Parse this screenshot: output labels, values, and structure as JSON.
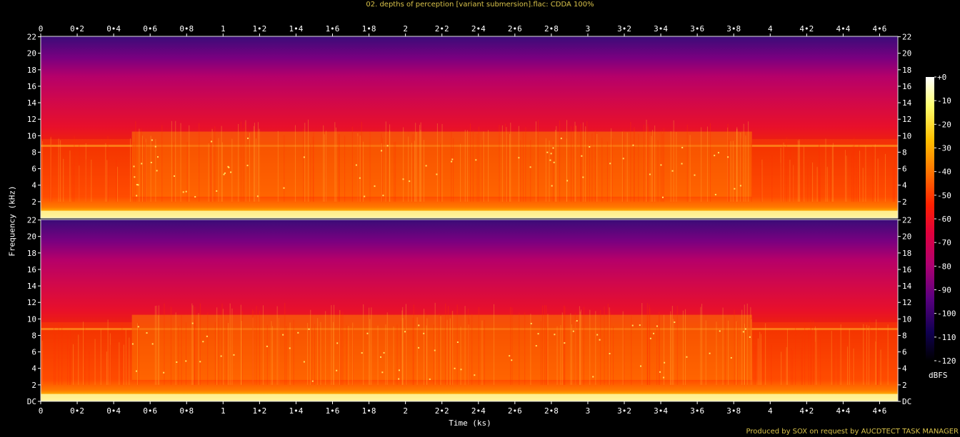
{
  "header": {
    "title": "02. depths of perception [variant submersion].flac: CDDA 100%"
  },
  "footer": {
    "credit": "Produced by SOX on request by AUCDTECT TASK MANAGER"
  },
  "colors": {
    "title_text": "#d9c24a",
    "background": "#000000"
  },
  "chart_data": {
    "type": "heatmap",
    "title": "02. depths of perception [variant submersion].flac: CDDA 100%",
    "xlabel": "Time (ks)",
    "ylabel": "Frequency (kHz)",
    "colorbar_label": "dBFS",
    "xlim": [
      0,
      4.7
    ],
    "ylim_khz": [
      0,
      22.05
    ],
    "x_ticks": [
      0,
      0.2,
      0.4,
      0.6,
      0.8,
      1,
      1.2,
      1.4,
      1.6,
      1.8,
      2,
      2.2,
      2.4,
      2.6,
      2.8,
      3,
      3.2,
      3.4,
      3.6,
      3.8,
      4,
      4.2,
      4.4,
      4.6
    ],
    "x_tick_labels": [
      "0",
      "0•2",
      "0•4",
      "0•6",
      "0•8",
      "1",
      "1•2",
      "1•4",
      "1•6",
      "1•8",
      "2",
      "2•2",
      "2•4",
      "2•6",
      "2•8",
      "3",
      "3•2",
      "3•4",
      "3•6",
      "3•8",
      "4",
      "4•2",
      "4•4",
      "4•6"
    ],
    "y_ticks": [
      0,
      2,
      4,
      6,
      8,
      10,
      12,
      14,
      16,
      18,
      20,
      22
    ],
    "y_tick_labels_top": [
      "2",
      "4",
      "6",
      "8",
      "10",
      "12",
      "14",
      "16",
      "18",
      "20",
      "22"
    ],
    "y_tick_labels_bottom": [
      "DC",
      "2",
      "4",
      "6",
      "8",
      "10",
      "12",
      "14",
      "16",
      "18",
      "20",
      "22"
    ],
    "colorbar_ticks": [
      0,
      -10,
      -20,
      -30,
      -40,
      -50,
      -60,
      -70,
      -80,
      -90,
      -100,
      -110,
      -120
    ],
    "colorbar_tick_labels": [
      "+0",
      "-10",
      "-20",
      "-30",
      "-40",
      "-50",
      "-60",
      "-70",
      "-80",
      "-90",
      "-100",
      "-110",
      "-120"
    ],
    "channels": 2,
    "segments_ks": [
      {
        "start": 0,
        "end": 0.5,
        "character": "quiet intro, 2-10 kHz band"
      },
      {
        "start": 0.5,
        "end": 3.9,
        "character": "dense broadband main section"
      },
      {
        "start": 3.9,
        "end": 4.7,
        "character": "quiet outro, 2-10 kHz band"
      }
    ]
  }
}
